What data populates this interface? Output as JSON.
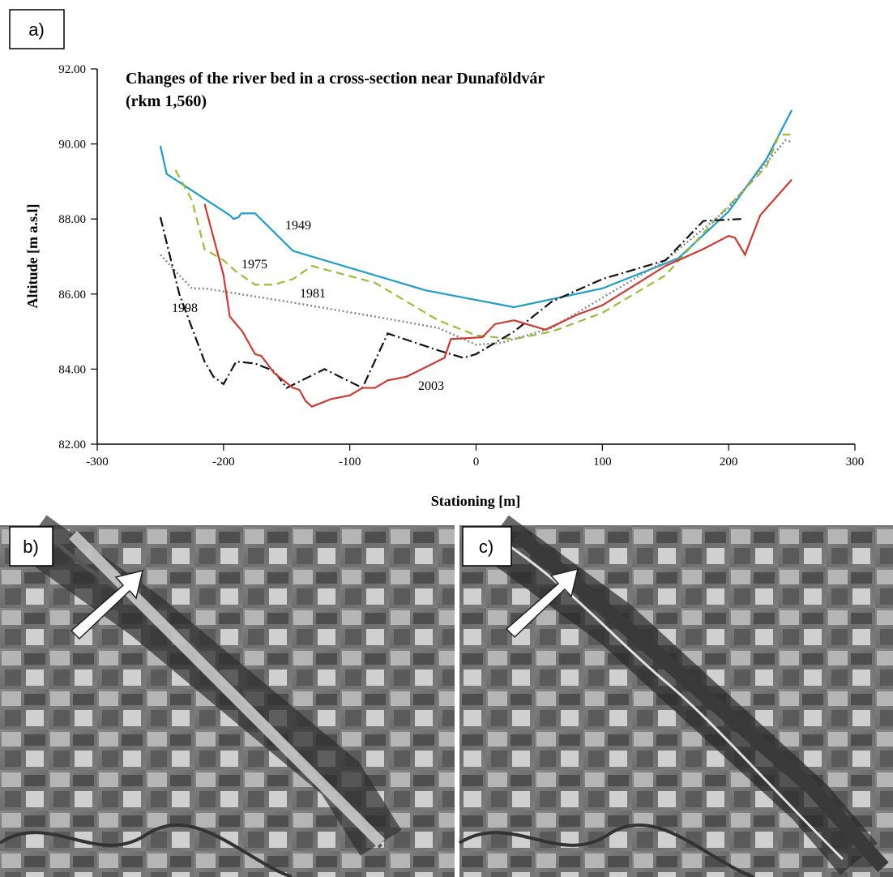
{
  "chart_data": {
    "type": "line",
    "title": "Changes of the river bed in a cross-section near Dunaföldvár",
    "subtitle": "(rkm 1,560)",
    "x_label": "Stationing [m]",
    "y_label": "Altitude [m a.s.l]",
    "xlim": [
      -300,
      300
    ],
    "xticks": [
      -300,
      -200,
      -100,
      0,
      100,
      200,
      300
    ],
    "ylim": [
      82,
      92
    ],
    "yticks": [
      {
        "value": 82,
        "label": "82.00"
      },
      {
        "value": 84,
        "label": "84.00"
      },
      {
        "value": 86,
        "label": "86.00"
      },
      {
        "value": 88,
        "label": "88.00"
      },
      {
        "value": 90,
        "label": "90.00"
      },
      {
        "value": 92,
        "label": "92.00"
      }
    ],
    "series": [
      {
        "name": "1949",
        "color": "#1f9dc6",
        "style": "solid",
        "x": [
          -250,
          -245,
          -195,
          -192,
          -188,
          -186,
          -175,
          -145,
          -40,
          30,
          100,
          160,
          200,
          230,
          250
        ],
        "values": [
          89.95,
          89.2,
          88.1,
          88.0,
          88.05,
          88.15,
          88.15,
          87.15,
          86.1,
          85.65,
          86.15,
          86.95,
          88.2,
          89.6,
          90.9
        ]
      },
      {
        "name": "1975",
        "color": "#9dbb3b",
        "style": "dashed",
        "x": [
          -238,
          -225,
          -215,
          -200,
          -190,
          -175,
          -160,
          -145,
          -130,
          -80,
          -30,
          0,
          30,
          60,
          100,
          150,
          190,
          230,
          240,
          250
        ],
        "values": [
          89.3,
          88.5,
          87.2,
          86.9,
          86.6,
          86.25,
          86.25,
          86.4,
          86.75,
          86.3,
          85.3,
          84.9,
          84.8,
          85.0,
          85.5,
          86.5,
          88.0,
          89.4,
          90.25,
          90.25
        ]
      },
      {
        "name": "1981",
        "color": "#8a8a8a",
        "style": "dotted",
        "x": [
          -250,
          -235,
          -225,
          -215,
          -150,
          -80,
          -30,
          0,
          20,
          60,
          100,
          150,
          200,
          245,
          250
        ],
        "values": [
          87.05,
          86.5,
          86.15,
          86.15,
          85.8,
          85.4,
          85.1,
          84.65,
          84.7,
          85.1,
          85.9,
          86.9,
          88.3,
          90.1,
          90.05
        ]
      },
      {
        "name": "1998",
        "color": "#111111",
        "style": "dashdot",
        "x": [
          -250,
          -235,
          -215,
          -208,
          -200,
          -190,
          -175,
          -160,
          -150,
          -120,
          -90,
          -70,
          -30,
          -10,
          0,
          30,
          60,
          100,
          150,
          180,
          210
        ],
        "values": [
          88.05,
          86.0,
          84.2,
          83.8,
          83.6,
          84.2,
          84.15,
          83.95,
          83.5,
          84.0,
          83.5,
          84.95,
          84.5,
          84.3,
          84.4,
          85.0,
          85.8,
          86.4,
          86.9,
          87.95,
          88.0
        ]
      },
      {
        "name": "2003",
        "color": "#cc3b33",
        "style": "solid",
        "x": [
          -215,
          -200,
          -195,
          -185,
          -175,
          -170,
          -160,
          -145,
          -140,
          -135,
          -130,
          -115,
          -100,
          -90,
          -80,
          -70,
          -55,
          -25,
          -20,
          5,
          15,
          30,
          55,
          80,
          100,
          150,
          180,
          200,
          205,
          213,
          225,
          250
        ],
        "values": [
          88.4,
          86.5,
          85.4,
          85.0,
          84.4,
          84.35,
          83.9,
          83.5,
          83.45,
          83.15,
          83.0,
          83.2,
          83.3,
          83.5,
          83.5,
          83.7,
          83.8,
          84.3,
          84.8,
          84.85,
          85.2,
          85.3,
          85.05,
          85.45,
          85.7,
          86.75,
          87.2,
          87.55,
          87.5,
          87.05,
          88.1,
          89.05
        ]
      }
    ]
  },
  "panel_labels": {
    "a": "a)",
    "b": "b)",
    "c": "c)"
  }
}
